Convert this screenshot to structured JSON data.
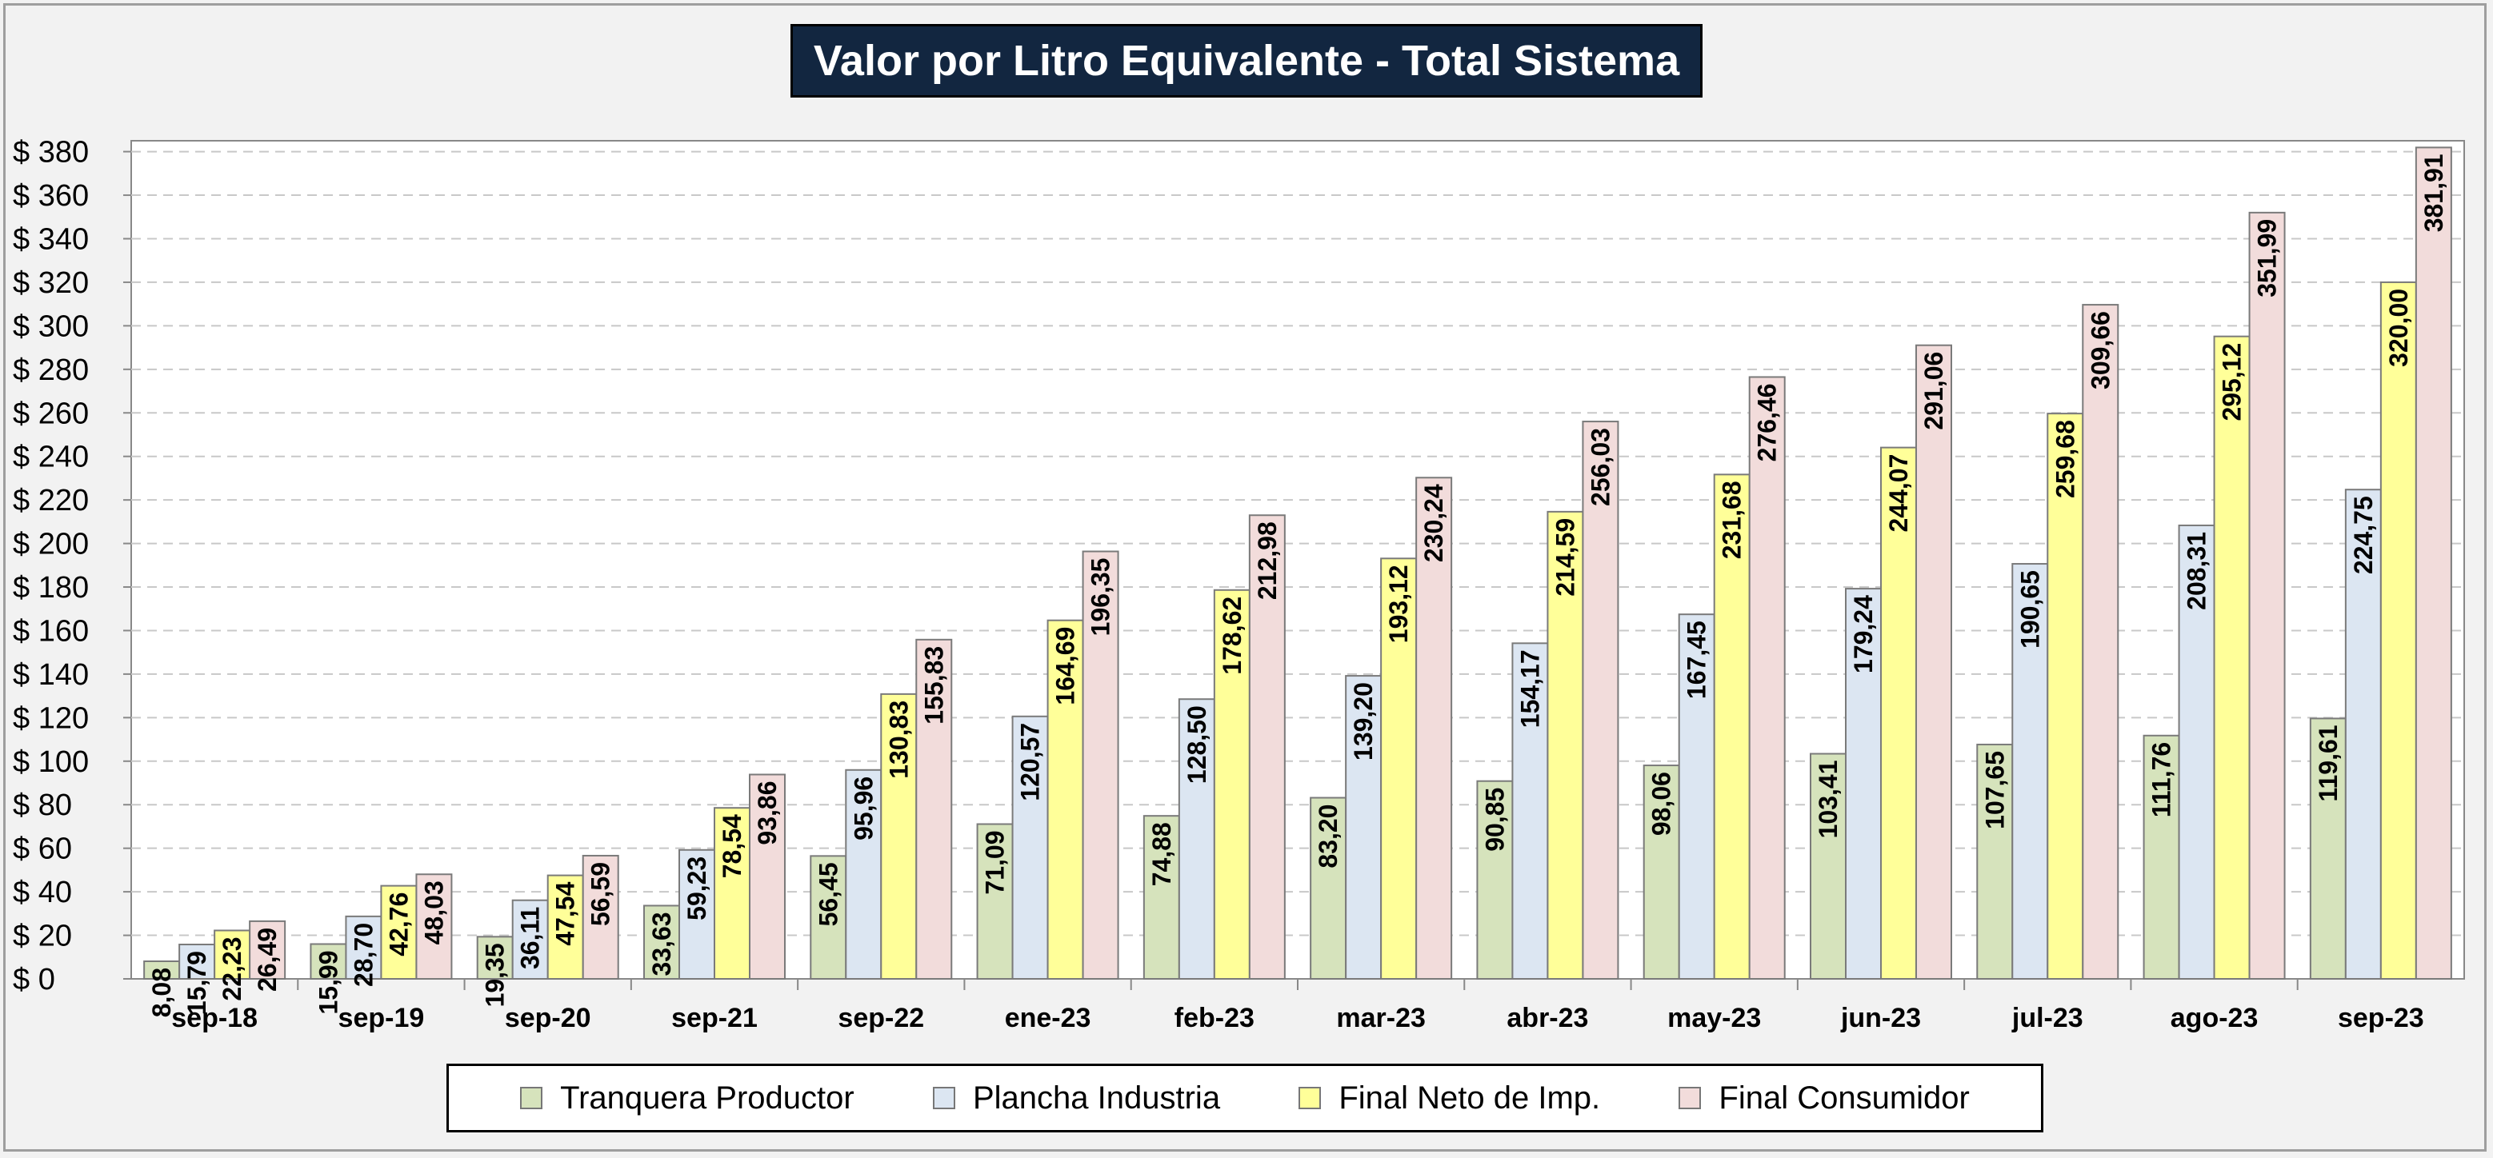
{
  "chart_data": {
    "type": "bar",
    "title": "Valor por Litro Equivalente - Total Sistema",
    "categories": [
      "sep-18",
      "sep-19",
      "sep-20",
      "sep-21",
      "sep-22",
      "ene-23",
      "feb-23",
      "mar-23",
      "abr-23",
      "may-23",
      "jun-23",
      "jul-23",
      "ago-23",
      "sep-23"
    ],
    "series": [
      {
        "name": "Tranquera Productor",
        "color": "#d6e3bc",
        "values": [
          8.08,
          15.99,
          19.35,
          33.63,
          56.45,
          71.09,
          74.88,
          83.2,
          90.85,
          98.06,
          103.41,
          107.65,
          111.76,
          119.61
        ],
        "labels": [
          "8,08",
          "15,99",
          "19,35",
          "33,63",
          "56,45",
          "71,09",
          "74,88",
          "83,20",
          "90,85",
          "98,06",
          "103,41",
          "107,65",
          "111,76",
          "119,61"
        ]
      },
      {
        "name": "Plancha Industria",
        "color": "#dce6f2",
        "values": [
          15.79,
          28.7,
          36.11,
          59.23,
          95.96,
          120.57,
          128.5,
          139.2,
          154.17,
          167.45,
          179.24,
          190.65,
          208.31,
          224.75
        ],
        "labels": [
          "15,79",
          "28,70",
          "36,11",
          "59,23",
          "95,96",
          "120,57",
          "128,50",
          "139,20",
          "154,17",
          "167,45",
          "179,24",
          "190,65",
          "208,31",
          "224,75"
        ]
      },
      {
        "name": "Final Neto de Imp.",
        "color": "#ffff99",
        "values": [
          22.23,
          42.76,
          47.54,
          78.54,
          130.83,
          164.69,
          178.62,
          193.12,
          214.59,
          231.68,
          244.07,
          259.68,
          295.12,
          320.0
        ],
        "labels": [
          "22,23",
          "42,76",
          "47,54",
          "78,54",
          "130,83",
          "164,69",
          "178,62",
          "193,12",
          "214,59",
          "231,68",
          "244,07",
          "259,68",
          "295,12",
          "320,00"
        ]
      },
      {
        "name": "Final Consumidor",
        "color": "#f2dcdb",
        "values": [
          26.49,
          48.03,
          56.59,
          93.86,
          155.83,
          196.35,
          212.98,
          230.24,
          256.03,
          276.46,
          291.06,
          309.66,
          351.99,
          381.91
        ],
        "labels": [
          "26,49",
          "48,03",
          "56,59",
          "93,86",
          "155,83",
          "196,35",
          "212,98",
          "230,24",
          "256,03",
          "276,46",
          "291,06",
          "309,66",
          "351,99",
          "381,91"
        ]
      }
    ],
    "yticks": [
      0,
      20,
      40,
      60,
      80,
      100,
      120,
      140,
      160,
      180,
      200,
      220,
      240,
      260,
      280,
      300,
      320,
      340,
      360,
      380
    ],
    "ytick_labels": [
      "$ 0",
      "$ 20",
      "$ 40",
      "$ 60",
      "$ 80",
      "$ 100",
      "$ 120",
      "$ 140",
      "$ 160",
      "$ 180",
      "$ 200",
      "$ 220",
      "$ 240",
      "$ 260",
      "$ 280",
      "$ 300",
      "$ 320",
      "$ 340",
      "$ 360",
      "$ 380"
    ],
    "ylim": [
      0,
      385
    ],
    "grid": true,
    "legend_position": "bottom"
  }
}
